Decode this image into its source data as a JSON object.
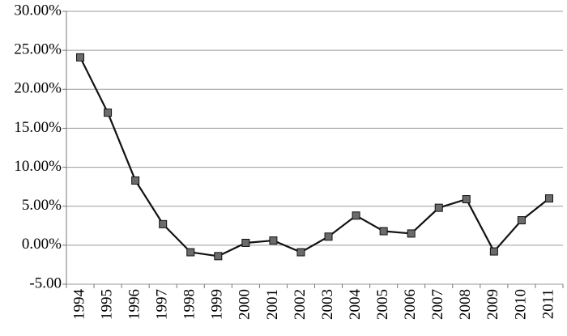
{
  "chart_data": {
    "type": "line",
    "categories": [
      "1994",
      "1995",
      "1996",
      "1997",
      "1998",
      "1999",
      "2000",
      "2001",
      "2002",
      "2003",
      "2004",
      "2005",
      "2006",
      "2007",
      "2008",
      "2009",
      "2010",
      "2011"
    ],
    "series": [
      {
        "color": "#111111",
        "marker_color": "#6b6b6b",
        "values": [
          24.1,
          17.0,
          8.3,
          2.7,
          -0.9,
          -1.4,
          0.3,
          0.6,
          -0.9,
          1.1,
          3.8,
          1.8,
          1.5,
          4.8,
          5.9,
          -0.8,
          3.2,
          6.0
        ]
      }
    ],
    "ylim": [
      -5,
      30
    ],
    "yticks": [
      {
        "value": 30,
        "label": "30.00%"
      },
      {
        "value": 25,
        "label": "25.00%"
      },
      {
        "value": 20,
        "label": "20.00%"
      },
      {
        "value": 15,
        "label": "15.00%"
      },
      {
        "value": 10,
        "label": "10.00%"
      },
      {
        "value": 5,
        "label": "5.00%"
      },
      {
        "value": 0,
        "label": "0.00%"
      },
      {
        "value": -5,
        "label": "-5.00"
      }
    ],
    "grid": true
  }
}
